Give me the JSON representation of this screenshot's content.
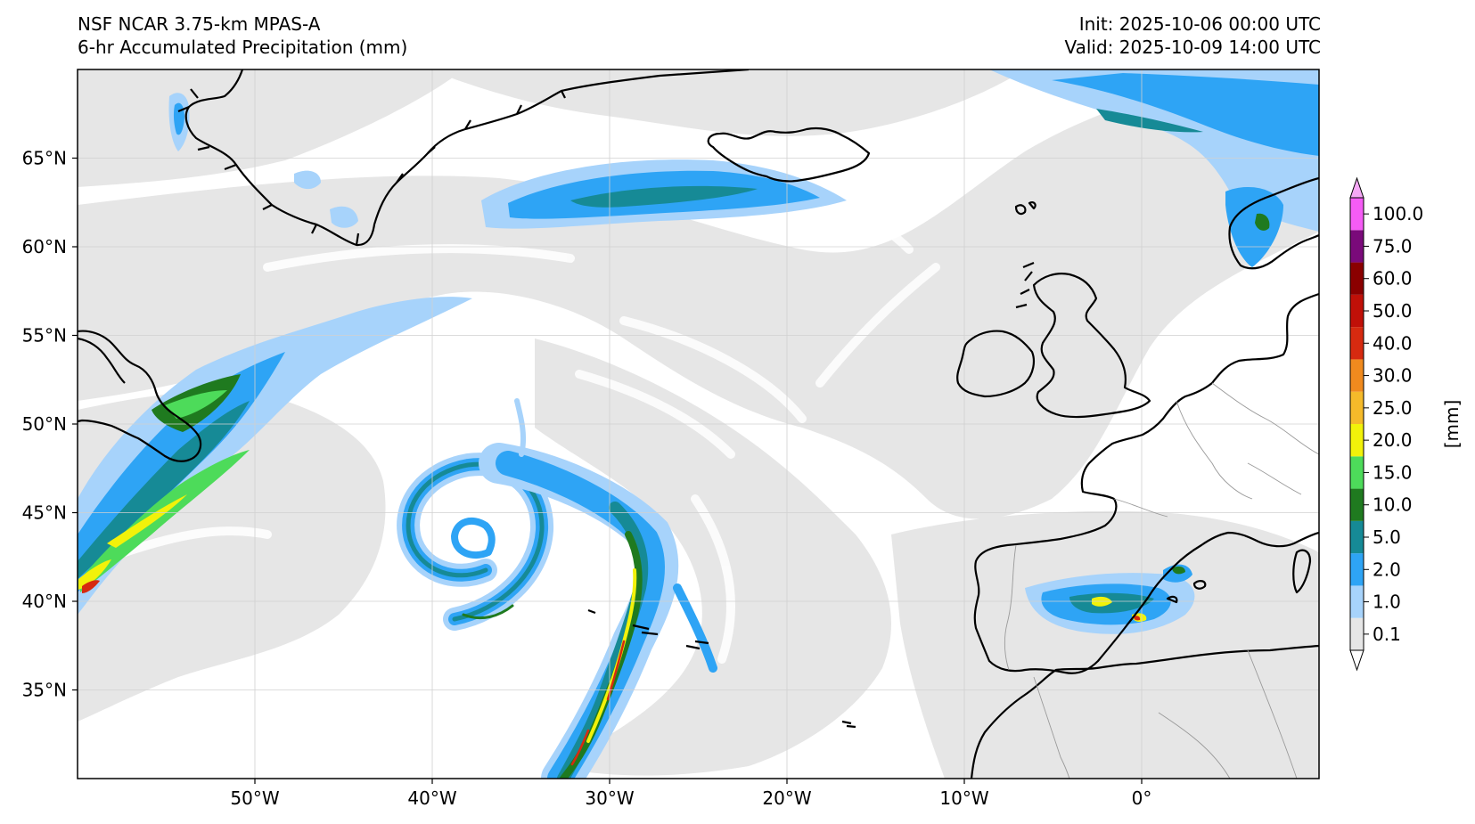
{
  "header": {
    "model": "NSF NCAR 3.75-km MPAS-A",
    "field": "6-hr Accumulated Precipitation (mm)",
    "init": "Init: 2025-10-06 00:00 UTC",
    "valid": "Valid: 2025-10-09 14:00 UTC"
  },
  "map": {
    "lon_range": [
      -60,
      10
    ],
    "lat_range": [
      30,
      70
    ],
    "lon_ticks": [
      {
        "value": -50,
        "label": "50°W"
      },
      {
        "value": -40,
        "label": "40°W"
      },
      {
        "value": -30,
        "label": "30°W"
      },
      {
        "value": -20,
        "label": "20°W"
      },
      {
        "value": -10,
        "label": "10°W"
      },
      {
        "value": 0,
        "label": "0°"
      }
    ],
    "lat_ticks": [
      {
        "value": 65,
        "label": "65°N"
      },
      {
        "value": 60,
        "label": "60°N"
      },
      {
        "value": 55,
        "label": "55°N"
      },
      {
        "value": 50,
        "label": "50°N"
      },
      {
        "value": 45,
        "label": "45°N"
      },
      {
        "value": 40,
        "label": "40°N"
      },
      {
        "value": 35,
        "label": "35°N"
      }
    ]
  },
  "colorbar": {
    "unit": "[mm]",
    "levels": [
      "0.1",
      "1.0",
      "2.0",
      "5.0",
      "10.0",
      "15.0",
      "20.0",
      "25.0",
      "30.0",
      "40.0",
      "50.0",
      "60.0",
      "75.0",
      "100.0"
    ],
    "colors": [
      "#e6e6e6",
      "#a7d3fb",
      "#2ea4f5",
      "#168a96",
      "#1f7a1f",
      "#4ddb5a",
      "#f2f20a",
      "#f5ba2a",
      "#f08a1e",
      "#d62a10",
      "#c01008",
      "#8a0000",
      "#7a0a7a",
      "#f55cf5"
    ],
    "under_color": "#ffffff",
    "over_color": "#f5a8f5"
  },
  "colors": {
    "coastline": "#000000",
    "border": "#9a9a9a",
    "grid": "#d0d0d0"
  }
}
